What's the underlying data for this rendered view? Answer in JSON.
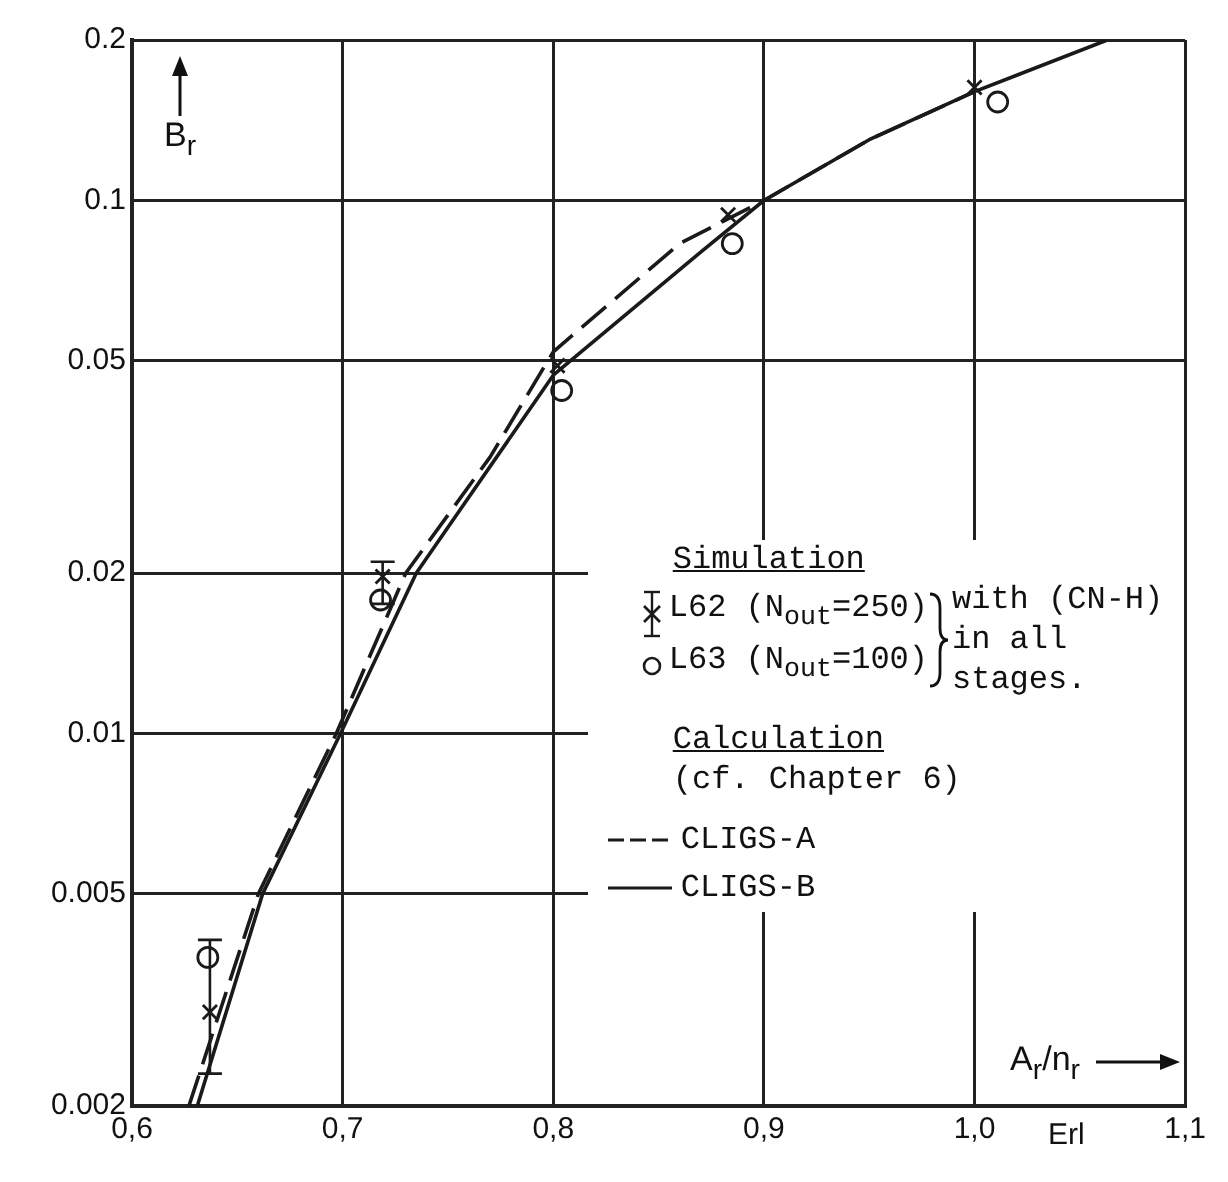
{
  "chart_data": {
    "type": "scatter",
    "xlabel": "A$_{r}$/n$_{r}$",
    "ylabel": "B$_{r}$",
    "annotations": [
      "Simulation",
      "with (CN-H) in all stages.",
      "Calculation",
      "(cf. Chapter 6)",
      "Erl"
    ],
    "xlim": [
      0.6,
      1.1
    ],
    "xticks": [
      {
        "value": 0.6,
        "label": "0,6"
      },
      {
        "value": 0.7,
        "label": "0,7"
      },
      {
        "value": 0.8,
        "label": "0,8"
      },
      {
        "value": 0.9,
        "label": "0,9"
      },
      {
        "value": 1.0,
        "label": "1,0"
      },
      {
        "value": 1.1,
        "label": "1,1"
      }
    ],
    "ylim": [
      0.002,
      0.2
    ],
    "yticks": [
      0.002,
      0.005,
      0.01,
      0.02,
      0.05,
      0.1,
      0.2
    ],
    "log": "y",
    "grid": true,
    "legend": "center",
    "series": [
      {
        "name": "L62 (N$_{out}$=250)",
        "type": "scatter",
        "marker": "cross",
        "color": "#1a1a1a",
        "x": [
          0.637,
          0.719,
          0.802,
          0.883,
          1.0
        ],
        "values": [
          0.003,
          0.0197,
          0.049,
          0.094,
          0.163
        ],
        "errors": [
          [
            0.0023,
            0.0041
          ],
          [
            0.0175,
            0.021
          ],
          null,
          null,
          null
        ]
      },
      {
        "name": "L63 (N$_{out}$=100)",
        "type": "scatter",
        "marker": "circle",
        "color": "#1a1a1a",
        "x": [
          0.636,
          0.718,
          0.804,
          0.885,
          1.011
        ],
        "values": [
          0.0038,
          0.0178,
          0.044,
          0.083,
          0.153
        ]
      },
      {
        "name": "CLIGS-A",
        "type": "line",
        "marker": "none",
        "line_style": "dashed",
        "color": "#1a1a1a",
        "x": [
          0.627,
          0.66,
          0.697,
          0.73,
          0.77,
          0.8,
          0.86,
          0.9,
          0.95,
          1.0
        ],
        "values": [
          0.002,
          0.005,
          0.01,
          0.02,
          0.033,
          0.052,
          0.083,
          0.1,
          0.13,
          0.16
        ]
      },
      {
        "name": "CLIGS-B",
        "type": "line",
        "marker": "none",
        "line_style": "solid",
        "color": "#1a1a1a",
        "x": [
          0.631,
          0.662,
          0.699,
          0.735,
          0.8,
          0.87,
          0.9,
          0.95,
          1.0,
          1.063
        ],
        "values": [
          0.002,
          0.005,
          0.01,
          0.02,
          0.047,
          0.08,
          0.1,
          0.13,
          0.16,
          0.2
        ]
      }
    ]
  }
}
